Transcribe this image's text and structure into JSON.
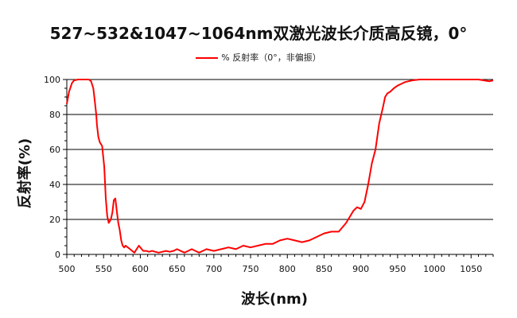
{
  "chart_data": {
    "type": "line",
    "title": "527~532&1047~1064nm双激光波长介质高反镜，0°",
    "xlabel": "波长(nm)",
    "ylabel": "反射率(%)",
    "xlim": [
      500,
      1080
    ],
    "ylim": [
      0,
      100
    ],
    "xticks": [
      500,
      550,
      600,
      650,
      700,
      750,
      800,
      850,
      900,
      950,
      1000,
      1050
    ],
    "yticks": [
      0,
      20,
      40,
      60,
      80,
      100
    ],
    "grid": "horizontal",
    "legend_position": "top-center",
    "series": [
      {
        "name": "% 反射率（0°，非偏振）",
        "color": "#ff0000",
        "x": [
          500,
          503,
          507,
          510,
          515,
          520,
          525,
          530,
          533,
          536,
          538,
          540,
          541,
          543,
          545,
          548,
          551,
          553,
          555,
          557,
          560,
          562,
          564,
          566,
          568,
          570,
          572,
          574,
          576,
          578,
          580,
          583,
          586,
          589,
          592,
          595,
          598,
          600,
          604,
          608,
          612,
          616,
          620,
          625,
          630,
          635,
          640,
          645,
          650,
          655,
          660,
          665,
          670,
          675,
          680,
          690,
          700,
          710,
          720,
          730,
          740,
          750,
          760,
          770,
          780,
          790,
          800,
          810,
          820,
          830,
          840,
          850,
          860,
          870,
          880,
          890,
          895,
          900,
          905,
          910,
          915,
          920,
          925,
          930,
          933,
          936,
          940,
          945,
          950,
          955,
          960,
          965,
          970,
          980,
          1000,
          1020,
          1040,
          1060,
          1075,
          1080
        ],
        "y": [
          86,
          93,
          98,
          99.5,
          100,
          100,
          100,
          100,
          99,
          95,
          88,
          80,
          74,
          67,
          64,
          62,
          50,
          32,
          22,
          18,
          20,
          24,
          31,
          32,
          25,
          18,
          14,
          8,
          5,
          4,
          5,
          4,
          3,
          2,
          1,
          3,
          5,
          4,
          2,
          2,
          1.5,
          2,
          1.5,
          1,
          1.5,
          2,
          1.5,
          2,
          3,
          2,
          1,
          2,
          3,
          2,
          1,
          3,
          2,
          3,
          4,
          3,
          5,
          4,
          5,
          6,
          6,
          8,
          9,
          8,
          7,
          8,
          10,
          12,
          13,
          13,
          18,
          25,
          27,
          26,
          30,
          40,
          52,
          60,
          75,
          84,
          90,
          92,
          93,
          95,
          96.5,
          97.5,
          98.5,
          99,
          99.5,
          100,
          100,
          100,
          100,
          100,
          99,
          99.5
        ]
      }
    ]
  }
}
